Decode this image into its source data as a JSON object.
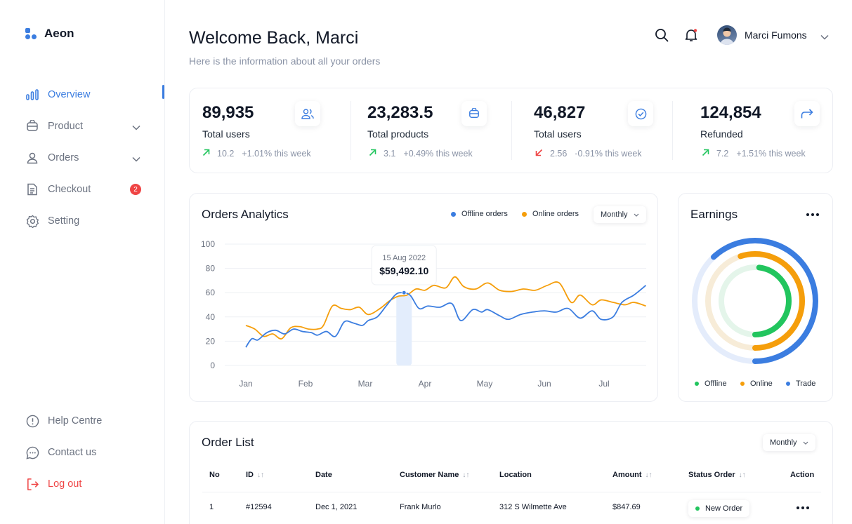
{
  "app": {
    "name": "Aeon"
  },
  "sidebar": {
    "items": [
      {
        "label": "Overview",
        "icon": "bar-chart-icon",
        "active": true
      },
      {
        "label": "Product",
        "icon": "box-icon",
        "expandable": true
      },
      {
        "label": "Orders",
        "icon": "user-icon",
        "expandable": true
      },
      {
        "label": "Checkout",
        "icon": "receipt-icon",
        "badge": "2"
      },
      {
        "label": "Setting",
        "icon": "gear-icon"
      }
    ],
    "footer": [
      {
        "label": "Help Centre",
        "icon": "info-icon"
      },
      {
        "label": "Contact us",
        "icon": "chat-icon"
      },
      {
        "label": "Log out",
        "icon": "logout-icon"
      }
    ]
  },
  "header": {
    "title": "Welcome Back, Marci",
    "subtitle": "Here is the information about all your orders",
    "user_name": "Marci Fumons"
  },
  "stats": [
    {
      "value": "89,935",
      "label": "Total users",
      "delta": "10.2",
      "week": "+1.01% this week",
      "direction": "up",
      "icon": "users-icon"
    },
    {
      "value": "23,283.5",
      "label": "Total products",
      "delta": "3.1",
      "week": "+0.49% this week",
      "direction": "up",
      "icon": "box-icon"
    },
    {
      "value": "46,827",
      "label": "Total users",
      "delta": "2.56",
      "week": "-0.91% this week",
      "direction": "down",
      "icon": "check-circle-icon"
    },
    {
      "value": "124,854",
      "label": "Refunded",
      "delta": "7.2",
      "week": "+1.51% this week",
      "direction": "up",
      "icon": "share-arrow-icon"
    }
  ],
  "analytics": {
    "title": "Orders Analytics",
    "legend_offline": "Offline orders",
    "legend_online": "Online orders",
    "period": "Monthly",
    "tooltip_date": "15 Aug 2022",
    "tooltip_value": "$59,492.10"
  },
  "chart_data": {
    "type": "line",
    "title": "Orders Analytics",
    "x_labels": [
      "Jan",
      "Feb",
      "Mar",
      "Apr",
      "May",
      "Jun",
      "Jul"
    ],
    "y_ticks": [
      100,
      80,
      60,
      40,
      20,
      0
    ],
    "ylim": [
      0,
      100
    ],
    "legend_position": "top-right",
    "series": [
      {
        "name": "Offline orders",
        "color": "#3b7de0",
        "x": [
          0.0,
          0.1,
          0.2,
          0.35,
          0.5,
          0.65,
          0.8,
          0.95,
          1.1,
          1.2,
          1.35,
          1.5,
          1.65,
          1.8,
          1.95,
          2.05,
          2.2,
          2.35,
          2.5,
          2.6,
          2.75,
          2.9,
          3.05,
          3.25,
          3.45,
          3.6,
          3.8,
          3.95,
          4.05,
          4.25,
          4.4,
          4.6,
          4.8,
          5.0,
          5.2,
          5.4,
          5.6,
          5.8,
          5.95,
          6.15,
          6.3,
          6.5,
          6.7
        ],
        "y": [
          15,
          22,
          21,
          27,
          29,
          26,
          30,
          28,
          27,
          25,
          28,
          24,
          36,
          35,
          33,
          37,
          40,
          49,
          58,
          60,
          58,
          47,
          49,
          48,
          51,
          37,
          46,
          44,
          46,
          41,
          38,
          42,
          44,
          45,
          44,
          47,
          39,
          45,
          38,
          40,
          52,
          58,
          66
        ]
      },
      {
        "name": "Online orders",
        "color": "#f59e0b",
        "x": [
          0.0,
          0.15,
          0.3,
          0.45,
          0.6,
          0.75,
          0.9,
          1.05,
          1.2,
          1.3,
          1.45,
          1.6,
          1.75,
          1.9,
          2.05,
          2.25,
          2.4,
          2.55,
          2.7,
          2.85,
          3.0,
          3.15,
          3.35,
          3.5,
          3.65,
          3.85,
          4.05,
          4.25,
          4.45,
          4.65,
          4.85,
          5.05,
          5.25,
          5.45,
          5.6,
          5.8,
          5.95,
          6.15,
          6.35,
          6.5,
          6.7
        ],
        "y": [
          33,
          30,
          24,
          26,
          22,
          31,
          32,
          30,
          30,
          33,
          49,
          47,
          46,
          48,
          42,
          47,
          53,
          57,
          58,
          63,
          62,
          66,
          64,
          73,
          65,
          63,
          68,
          62,
          61,
          63,
          62,
          66,
          68,
          52,
          58,
          50,
          54,
          52,
          50,
          52,
          49
        ]
      }
    ],
    "highlight": {
      "label": "15 Aug 2022",
      "value": "$59,492.10",
      "x": 2.65,
      "y": 60
    }
  },
  "earnings": {
    "title": "Earnings",
    "legend": [
      {
        "label": "Offline",
        "color": "#22c55e"
      },
      {
        "label": "Online",
        "color": "#f59e0b"
      },
      {
        "label": "Trade",
        "color": "#3b7de0"
      }
    ],
    "rings": [
      {
        "name": "Trade",
        "fraction": 0.62,
        "color": "#3b7de0"
      },
      {
        "name": "Online",
        "fraction": 0.55,
        "color": "#f59e0b"
      },
      {
        "name": "Offline",
        "fraction": 0.48,
        "color": "#22c55e"
      }
    ]
  },
  "orders": {
    "title": "Order List",
    "period": "Monthly",
    "columns": [
      "No",
      "ID",
      "Date",
      "Customer Name",
      "Location",
      "Amount",
      "Status Order",
      "Action"
    ],
    "rows": [
      {
        "no": "1",
        "id": "#12594",
        "date": "Dec 1, 2021",
        "customer": "Frank Murlo",
        "location": "312 S Wilmette Ave",
        "amount": "$847.69",
        "status": "New Order"
      }
    ]
  }
}
